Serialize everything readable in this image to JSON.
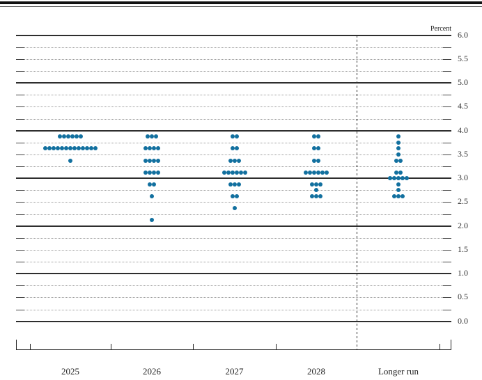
{
  "chart": {
    "percent_label": "Percent"
  },
  "chart_data": {
    "type": "scatter",
    "subtype": "fomc-dot-plot",
    "ylabel": "Percent",
    "ylim": [
      0.0,
      6.0
    ],
    "ytick_labels": [
      "6.0",
      "5.5",
      "5.0",
      "4.5",
      "4.0",
      "3.5",
      "3.0",
      "2.5",
      "2.0",
      "1.5",
      "1.0",
      "0.5",
      "0.0"
    ],
    "ytick_step": 0.5,
    "gridline_minor_step": 0.25,
    "grid": "solid lines at whole percents, dotted lines at quarter percents",
    "separator": "dashed vertical line between 2028 and Longer run",
    "categories": [
      "2025",
      "2026",
      "2027",
      "2028",
      "Longer run"
    ],
    "dot_color": "#12709f",
    "axis_color": "#2e2e2e",
    "series": [
      {
        "name": "2025",
        "dots": [
          {
            "rate": 3.875,
            "count": 6
          },
          {
            "rate": 3.625,
            "count": 13
          },
          {
            "rate": 3.375,
            "count": 1
          }
        ]
      },
      {
        "name": "2026",
        "dots": [
          {
            "rate": 3.875,
            "count": 3
          },
          {
            "rate": 3.625,
            "count": 4
          },
          {
            "rate": 3.375,
            "count": 4
          },
          {
            "rate": 3.125,
            "count": 4
          },
          {
            "rate": 2.875,
            "count": 2
          },
          {
            "rate": 2.625,
            "count": 1
          },
          {
            "rate": 2.125,
            "count": 1
          }
        ]
      },
      {
        "name": "2027",
        "dots": [
          {
            "rate": 3.875,
            "count": 2
          },
          {
            "rate": 3.625,
            "count": 2
          },
          {
            "rate": 3.375,
            "count": 3
          },
          {
            "rate": 3.125,
            "count": 6
          },
          {
            "rate": 2.875,
            "count": 3
          },
          {
            "rate": 2.625,
            "count": 2
          },
          {
            "rate": 2.375,
            "count": 1
          }
        ]
      },
      {
        "name": "2028",
        "dots": [
          {
            "rate": 3.875,
            "count": 2
          },
          {
            "rate": 3.625,
            "count": 2
          },
          {
            "rate": 3.375,
            "count": 2
          },
          {
            "rate": 3.125,
            "count": 6
          },
          {
            "rate": 2.875,
            "count": 3
          },
          {
            "rate": 2.75,
            "count": 1
          },
          {
            "rate": 2.625,
            "count": 3
          }
        ]
      },
      {
        "name": "Longer run",
        "dots": [
          {
            "rate": 3.875,
            "count": 1
          },
          {
            "rate": 3.75,
            "count": 1
          },
          {
            "rate": 3.625,
            "count": 1
          },
          {
            "rate": 3.5,
            "count": 1
          },
          {
            "rate": 3.375,
            "count": 2
          },
          {
            "rate": 3.125,
            "count": 2
          },
          {
            "rate": 3.0,
            "count": 5
          },
          {
            "rate": 2.875,
            "count": 1
          },
          {
            "rate": 2.75,
            "count": 1
          },
          {
            "rate": 2.625,
            "count": 3
          }
        ]
      }
    ]
  }
}
